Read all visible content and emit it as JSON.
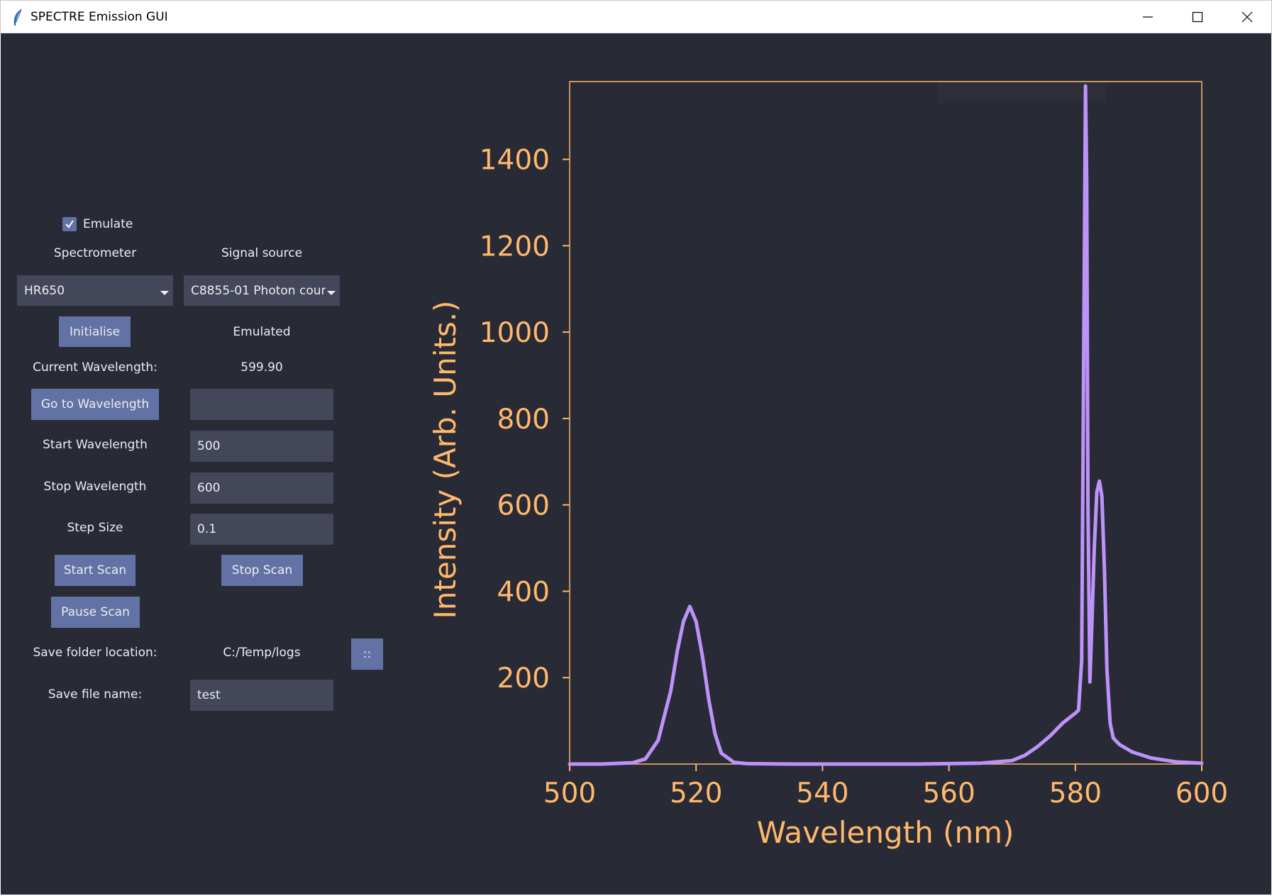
{
  "window": {
    "title": "SPECTRE Emission GUI"
  },
  "controls": {
    "emulate_label": "Emulate",
    "emulate_checked": true,
    "spectrometer_label": "Spectrometer",
    "signal_source_label": "Signal source",
    "spectrometer_value": "HR650",
    "signal_source_value": "C8855-01 Photon coun",
    "initialise_button": "Initialise",
    "status_text": "Emulated",
    "current_wavelength_label": "Current Wavelength:",
    "current_wavelength_value": "599.90",
    "goto_wavelength_button": "Go to Wavelength",
    "goto_wavelength_value": "",
    "start_wavelength_label": "Start Wavelength",
    "start_wavelength_value": "500",
    "stop_wavelength_label": "Stop Wavelength",
    "stop_wavelength_value": "600",
    "step_size_label": "Step Size",
    "step_size_value": "0.1",
    "start_scan_button": "Start Scan",
    "stop_scan_button": "Stop Scan",
    "pause_scan_button": "Pause Scan",
    "save_folder_label": "Save folder location:",
    "save_folder_value": "C:/Temp/logs",
    "browse_button": "::",
    "save_file_label": "Save file name:",
    "save_file_value": "test"
  },
  "colors": {
    "background": "#282a36",
    "field": "#44475a",
    "button": "#6272a4",
    "text": "#ecedf2",
    "axis": "#ffb86c",
    "line": "#bd93f9"
  },
  "chart_data": {
    "type": "line",
    "title": "",
    "xlabel": "Wavelength (nm)",
    "ylabel": "Intensity (Arb. Units.)",
    "xlim": [
      500,
      600
    ],
    "ylim": [
      0,
      1580
    ],
    "xticks": [
      500,
      520,
      540,
      560,
      580,
      600
    ],
    "yticks": [
      200,
      400,
      600,
      800,
      1000,
      1200,
      1400
    ],
    "grid": false,
    "series": [
      {
        "x": [
          500,
          505,
          510,
          512,
          514,
          516,
          517,
          518,
          519,
          520,
          521,
          522,
          523,
          524,
          526,
          528,
          535,
          545,
          555,
          565,
          570,
          572,
          574,
          576,
          578,
          580,
          580.5,
          581,
          581.3,
          581.6,
          581.8,
          582,
          582.3,
          582.6,
          583,
          583.4,
          583.8,
          584.2,
          584.6,
          585,
          585.5,
          586,
          587,
          589,
          592,
          596,
          600
        ],
        "y": [
          0,
          0,
          3,
          12,
          55,
          170,
          260,
          330,
          365,
          330,
          250,
          150,
          70,
          25,
          4,
          1,
          0,
          0,
          0,
          2,
          8,
          20,
          40,
          65,
          95,
          118,
          125,
          240,
          900,
          1570,
          1350,
          600,
          190,
          320,
          500,
          630,
          655,
          620,
          450,
          220,
          95,
          60,
          45,
          28,
          14,
          5,
          2
        ]
      }
    ]
  }
}
